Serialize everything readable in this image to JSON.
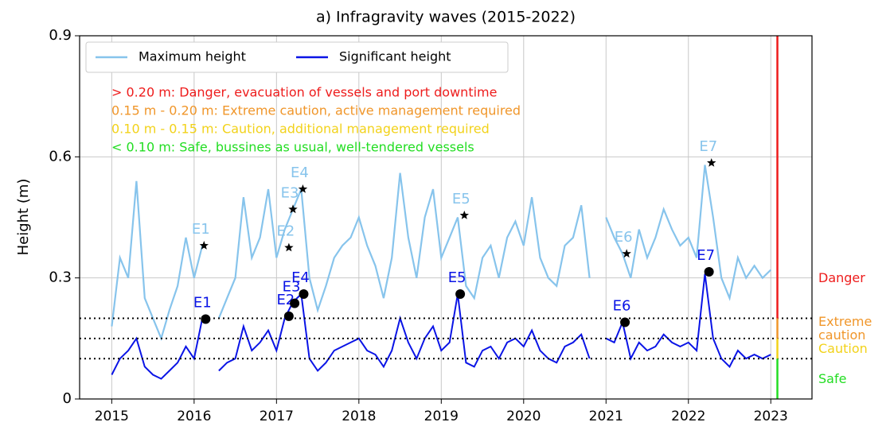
{
  "chart_data": {
    "type": "line",
    "title": "a) Infragravity waves (2015-2022)",
    "y_label": "Height (m)",
    "xlim": [
      2014.61,
      2023.5
    ],
    "ylim": [
      0,
      0.9
    ],
    "xticks": [
      2015,
      2016,
      2017,
      2018,
      2019,
      2020,
      2021,
      2022,
      2023
    ],
    "yticks": [
      0,
      0.3,
      0.6,
      0.9
    ],
    "grid": true,
    "legend": "upper left",
    "x": [
      2015.0,
      2015.1,
      2015.2,
      2015.3,
      2015.4,
      2015.5,
      2015.6,
      2015.7,
      2015.8,
      2015.9,
      2016.0,
      2016.1,
      2016.2,
      2016.3,
      2016.4,
      2016.5,
      2016.6,
      2016.7,
      2016.8,
      2016.9,
      2017.0,
      2017.1,
      2017.2,
      2017.3,
      2017.4,
      2017.5,
      2017.6,
      2017.7,
      2017.8,
      2017.9,
      2018.0,
      2018.1,
      2018.2,
      2018.3,
      2018.4,
      2018.5,
      2018.6,
      2018.7,
      2018.8,
      2018.9,
      2019.0,
      2019.1,
      2019.2,
      2019.3,
      2019.4,
      2019.5,
      2019.6,
      2019.7,
      2019.8,
      2019.9,
      2020.0,
      2020.1,
      2020.2,
      2020.3,
      2020.4,
      2020.5,
      2020.6,
      2020.7,
      2020.8,
      2020.9,
      2021.0,
      2021.1,
      2021.2,
      2021.3,
      2021.4,
      2021.5,
      2021.6,
      2021.7,
      2021.8,
      2021.9,
      2022.0,
      2022.1,
      2022.2,
      2022.3,
      2022.4,
      2022.5,
      2022.6,
      2022.7,
      2022.8,
      2022.9,
      2023.0
    ],
    "series": [
      {
        "name": "Maximum height",
        "color": "#87c4ec",
        "values": [
          0.18,
          0.35,
          0.3,
          0.54,
          0.25,
          0.2,
          0.15,
          0.22,
          0.28,
          0.4,
          0.3,
          0.38,
          null,
          0.2,
          0.25,
          0.3,
          0.5,
          0.35,
          0.4,
          0.52,
          0.35,
          0.42,
          0.47,
          0.52,
          0.3,
          0.22,
          0.28,
          0.35,
          0.38,
          0.4,
          0.45,
          0.38,
          0.33,
          0.25,
          0.35,
          0.56,
          0.4,
          0.3,
          0.45,
          0.52,
          0.35,
          0.4,
          0.45,
          0.28,
          0.25,
          0.35,
          0.38,
          0.3,
          0.4,
          0.44,
          0.38,
          0.5,
          0.35,
          0.3,
          0.28,
          0.38,
          0.4,
          0.48,
          0.3,
          null,
          0.45,
          0.4,
          0.36,
          0.3,
          0.42,
          0.35,
          0.4,
          0.47,
          0.42,
          0.38,
          0.4,
          0.35,
          0.58,
          0.45,
          0.3,
          0.25,
          0.35,
          0.3,
          0.33,
          0.3,
          0.32
        ]
      },
      {
        "name": "Significant height",
        "color": "#0a14e6",
        "values": [
          0.06,
          0.1,
          0.12,
          0.15,
          0.08,
          0.06,
          0.05,
          0.07,
          0.09,
          0.13,
          0.1,
          0.2,
          null,
          0.07,
          0.09,
          0.1,
          0.18,
          0.12,
          0.14,
          0.17,
          0.12,
          0.2,
          0.24,
          0.26,
          0.1,
          0.07,
          0.09,
          0.12,
          0.13,
          0.14,
          0.15,
          0.12,
          0.11,
          0.08,
          0.12,
          0.2,
          0.14,
          0.1,
          0.15,
          0.18,
          0.12,
          0.14,
          0.26,
          0.09,
          0.08,
          0.12,
          0.13,
          0.1,
          0.14,
          0.15,
          0.13,
          0.17,
          0.12,
          0.1,
          0.09,
          0.13,
          0.14,
          0.16,
          0.1,
          null,
          0.15,
          0.14,
          0.19,
          0.1,
          0.14,
          0.12,
          0.13,
          0.16,
          0.14,
          0.13,
          0.14,
          0.12,
          0.31,
          0.15,
          0.1,
          0.08,
          0.12,
          0.1,
          0.11,
          0.1,
          0.11
        ]
      }
    ],
    "max_events": {
      "color": "#87c4ec",
      "labels": [
        "E1",
        "E2",
        "E3",
        "E4",
        "E5",
        "E6",
        "E7"
      ],
      "x": [
        2016.12,
        2017.15,
        2017.2,
        2017.32,
        2019.28,
        2021.25,
        2022.28
      ],
      "values": [
        0.38,
        0.375,
        0.47,
        0.52,
        0.455,
        0.36,
        0.585
      ]
    },
    "sig_events": {
      "color": "#0a14e6",
      "labels": [
        "E1",
        "E2",
        "E3",
        "E4",
        "E5",
        "E6",
        "E7"
      ],
      "x": [
        2016.14,
        2017.15,
        2017.22,
        2017.33,
        2019.23,
        2021.23,
        2022.25
      ],
      "values": [
        0.198,
        0.205,
        0.237,
        0.26,
        0.26,
        0.19,
        0.315
      ]
    },
    "thresholds": [
      0.1,
      0.15,
      0.2
    ],
    "zone_x": 2023.08,
    "zones": [
      {
        "name": "Safe",
        "from": 0,
        "to": 0.1,
        "color": "#22dd22"
      },
      {
        "name": "Caution",
        "from": 0.1,
        "to": 0.15,
        "color": "#f2d21a"
      },
      {
        "name": "Extreme caution",
        "from": 0.15,
        "to": 0.2,
        "color": "#f0962a"
      },
      {
        "name": "Danger",
        "from": 0.2,
        "to": 0.9,
        "color": "#ee1c1c"
      }
    ],
    "annotations": [
      {
        "text": "> 0.20 m: Danger, evacuation of vessels and port downtime",
        "color": "#ee1c1c"
      },
      {
        "text": "0.15 m - 0.20 m: Extreme caution, active management required",
        "color": "#f0962a"
      },
      {
        "text": "0.10 m - 0.15 m: Caution, additional management required",
        "color": "#f2d21a"
      },
      {
        "text": "< 0.10 m: Safe, bussines as usual, well-tendered vessels",
        "color": "#22dd22"
      }
    ]
  }
}
